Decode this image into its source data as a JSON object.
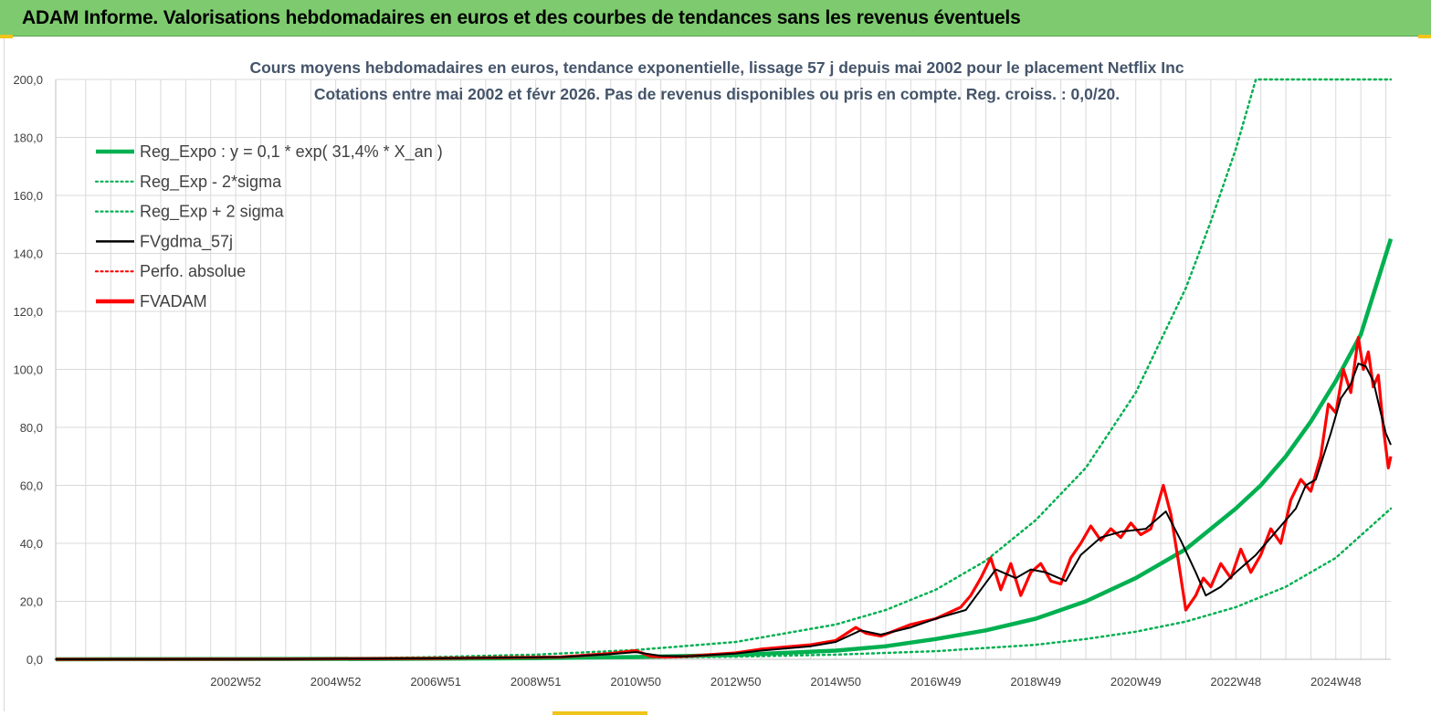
{
  "header": {
    "title": "ADAM Informe. Valorisations hebdomadaires en euros et des courbes de tendances sans les revenus éventuels"
  },
  "colors": {
    "banner": "#7dcb6e",
    "trend": "#00b050",
    "smoothed": "#000000",
    "adam": "#ff0000",
    "grid": "#d9d9d9"
  },
  "chart_data": {
    "type": "line",
    "title": "Cours moyens  hebdomadaires en euros, tendance exponentielle, lissage 57 j depuis mai 2002 pour le placement Netflix Inc",
    "subtitle": "Cotations entre mai 2002 et févr 2026. Pas de revenus disponibles ou pris en  compte. Reg.  croiss. : 0,0/20.",
    "xlabel": "",
    "ylabel": "",
    "ylim": [
      0,
      200
    ],
    "xlim": [
      1999.4,
      2026.1
    ],
    "y_ticks": [
      "0,0",
      "20,0",
      "40,0",
      "60,0",
      "80,0",
      "100,0",
      "120,0",
      "140,0",
      "160,0",
      "180,0",
      "200,0"
    ],
    "x_ticks": [
      {
        "label": "2002W52",
        "x": 2003.0
      },
      {
        "label": "2004W52",
        "x": 2005.0
      },
      {
        "label": "2006W51",
        "x": 2007.0
      },
      {
        "label": "2008W51",
        "x": 2009.0
      },
      {
        "label": "2010W50",
        "x": 2011.0
      },
      {
        "label": "2012W50",
        "x": 2013.0
      },
      {
        "label": "2014W50",
        "x": 2015.0
      },
      {
        "label": "2016W49",
        "x": 2017.0
      },
      {
        "label": "2018W49",
        "x": 2019.0
      },
      {
        "label": "2020W49",
        "x": 2021.0
      },
      {
        "label": "2022W48",
        "x": 2023.0
      },
      {
        "label": "2024W48",
        "x": 2025.0
      }
    ],
    "legend": {
      "position": "top-left",
      "entries": [
        {
          "label": "Reg_Expo : y = 0,1  * exp( 31,4% *  X_an )",
          "style": "solid-thick",
          "color": "#00b050"
        },
        {
          "label": "Reg_Exp - 2*sigma",
          "style": "dotted",
          "color": "#00b050"
        },
        {
          "label": "Reg_Exp + 2 sigma",
          "style": "dotted",
          "color": "#00b050"
        },
        {
          "label": "FVgdma_57j",
          "style": "solid",
          "color": "#000000"
        },
        {
          "label": "Perfo. absolue",
          "style": "dotted",
          "color": "#ff0000"
        },
        {
          "label": "FVADAM",
          "style": "solid-thick",
          "color": "#ff0000"
        }
      ]
    },
    "series": [
      {
        "name": "Reg_Expo : y = 0,1  * exp( 31,4% *  X_an )",
        "style": "solid-thick",
        "color": "#00b050",
        "x": [
          1999.4,
          2002.4,
          2006.0,
          2009.0,
          2011.0,
          2013.0,
          2015.0,
          2016.0,
          2017.0,
          2018.0,
          2019.0,
          2020.0,
          2021.0,
          2022.0,
          2023.0,
          2023.5,
          2024.0,
          2024.5,
          2025.0,
          2025.5,
          2026.1
        ],
        "values": [
          0,
          0.05,
          0.15,
          0.4,
          0.8,
          1.5,
          3.0,
          4.5,
          7.0,
          10.0,
          14.0,
          20.0,
          28.0,
          38.0,
          52.0,
          60.0,
          70.0,
          82.0,
          96.0,
          112.0,
          145.0
        ]
      },
      {
        "name": "Reg_Exp - 2*sigma",
        "style": "dotted",
        "color": "#00b050",
        "x": [
          1999.4,
          2006.0,
          2009.0,
          2011.0,
          2013.0,
          2015.0,
          2017.0,
          2019.0,
          2020.0,
          2021.0,
          2022.0,
          2023.0,
          2024.0,
          2025.0,
          2026.1
        ],
        "values": [
          0,
          0.1,
          0.3,
          0.5,
          0.9,
          1.6,
          2.8,
          5.0,
          7.0,
          9.5,
          13.0,
          18.0,
          25.0,
          35.0,
          52.0
        ]
      },
      {
        "name": "Reg_Exp + 2 sigma",
        "style": "dotted",
        "color": "#00b050",
        "x": [
          1999.4,
          2005.0,
          2007.0,
          2009.0,
          2011.0,
          2013.0,
          2015.0,
          2016.0,
          2017.0,
          2018.0,
          2019.0,
          2020.0,
          2021.0,
          2022.0,
          2022.5,
          2023.0,
          2023.4,
          2023.9,
          2026.1
        ],
        "values": [
          0,
          0.2,
          0.8,
          1.6,
          3.2,
          6.0,
          12.0,
          17.0,
          24.0,
          34.0,
          48.0,
          66.0,
          92.0,
          128.0,
          151.0,
          176.0,
          200.0,
          200.0,
          200.0
        ]
      },
      {
        "name": "FVgdma_57j",
        "style": "solid",
        "color": "#000000",
        "x": [
          1999.4,
          2004.0,
          2007.0,
          2009.5,
          2010.5,
          2011.0,
          2011.5,
          2012.0,
          2013.0,
          2013.5,
          2014.5,
          2015.0,
          2015.5,
          2015.9,
          2016.5,
          2017.0,
          2017.6,
          2017.9,
          2018.2,
          2018.6,
          2018.9,
          2019.2,
          2019.6,
          2019.9,
          2020.3,
          2020.7,
          2021.2,
          2021.6,
          2021.9,
          2022.2,
          2022.4,
          2022.7,
          2023.0,
          2023.4,
          2023.8,
          2024.2,
          2024.4,
          2024.6,
          2024.9,
          2025.1,
          2025.3,
          2025.45,
          2025.6,
          2025.75,
          2025.9,
          2026.0,
          2026.1
        ],
        "values": [
          0,
          0.1,
          0.3,
          0.8,
          1.8,
          2.5,
          1.2,
          1.0,
          2.0,
          3.0,
          4.5,
          6.0,
          10.0,
          8.5,
          11.0,
          14.0,
          17.0,
          24.0,
          31.0,
          28.0,
          31.0,
          30.0,
          27.0,
          36.0,
          42.0,
          44.0,
          45.0,
          51.0,
          41.0,
          30.0,
          22.0,
          25.0,
          30.0,
          36.0,
          44.0,
          52.0,
          60.0,
          62.0,
          78.0,
          90.0,
          95.0,
          102.0,
          101.0,
          96.0,
          85.0,
          78.0,
          74.0
        ]
      },
      {
        "name": "FVADAM",
        "style": "solid-thick",
        "color": "#ff0000",
        "x": [
          1999.4,
          2004.0,
          2007.0,
          2009.5,
          2010.5,
          2011.0,
          2011.3,
          2011.6,
          2012.0,
          2013.0,
          2013.5,
          2014.5,
          2015.0,
          2015.4,
          2015.6,
          2015.9,
          2016.5,
          2017.0,
          2017.5,
          2017.7,
          2017.9,
          2018.1,
          2018.3,
          2018.5,
          2018.7,
          2018.9,
          2019.1,
          2019.3,
          2019.5,
          2019.7,
          2019.9,
          2020.1,
          2020.3,
          2020.5,
          2020.7,
          2020.9,
          2021.1,
          2021.3,
          2021.55,
          2021.7,
          2021.85,
          2022.0,
          2022.2,
          2022.35,
          2022.5,
          2022.7,
          2022.9,
          2023.1,
          2023.3,
          2023.5,
          2023.7,
          2023.9,
          2024.1,
          2024.3,
          2024.5,
          2024.7,
          2024.85,
          2025.0,
          2025.15,
          2025.3,
          2025.45,
          2025.55,
          2025.65,
          2025.75,
          2025.85,
          2025.95,
          2026.05,
          2026.1
        ],
        "values": [
          0,
          0.1,
          0.3,
          0.8,
          2.0,
          3.0,
          1.0,
          0.8,
          1.0,
          2.2,
          3.5,
          5.0,
          6.5,
          11.0,
          9.0,
          8.0,
          12.0,
          14.0,
          18.0,
          22.0,
          28.0,
          35.0,
          24.0,
          33.0,
          22.0,
          30.0,
          33.0,
          27.0,
          26.0,
          35.0,
          40.0,
          46.0,
          41.0,
          45.0,
          42.0,
          47.0,
          43.0,
          45.0,
          60.0,
          50.0,
          34.0,
          17.0,
          22.0,
          28.0,
          25.0,
          33.0,
          28.0,
          38.0,
          30.0,
          36.0,
          45.0,
          40.0,
          55.0,
          62.0,
          58.0,
          70.0,
          88.0,
          85.0,
          100.0,
          92.0,
          111.0,
          100.0,
          106.0,
          94.0,
          98.0,
          80.0,
          66.0,
          70.0
        ]
      }
    ]
  }
}
